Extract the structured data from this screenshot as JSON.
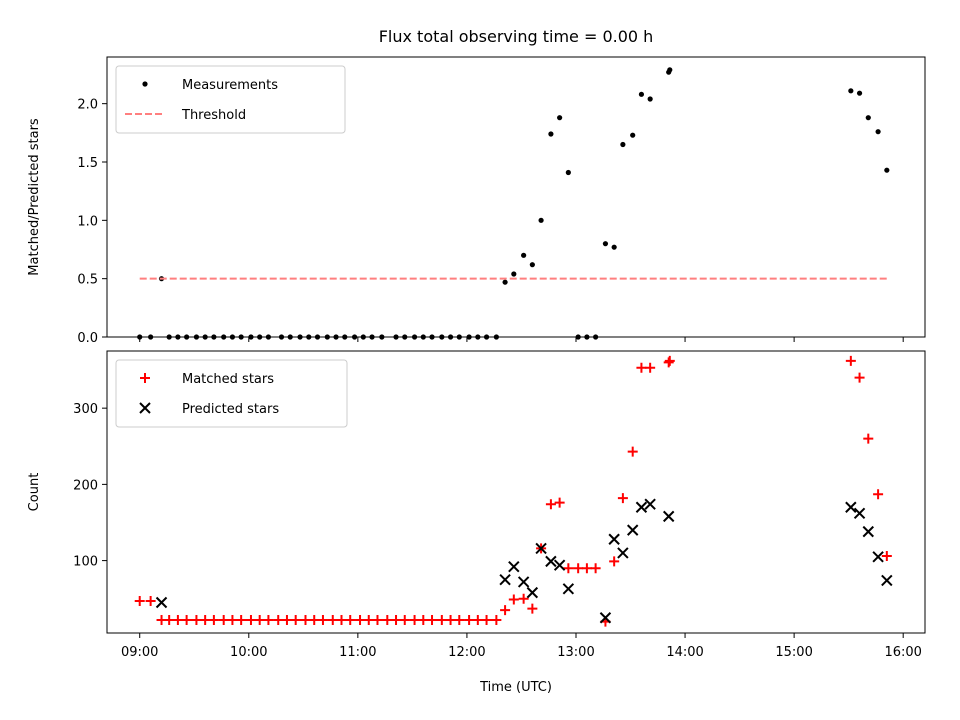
{
  "title": "Flux total observing time = 0.00 h",
  "xlabel": "Time (UTC)",
  "x_tick_labels": [
    "09:00",
    "10:00",
    "11:00",
    "12:00",
    "13:00",
    "14:00",
    "15:00",
    "16:00"
  ],
  "chart_data": [
    {
      "type": "scatter",
      "title": "Flux total observing time = 0.00 h",
      "xlabel": "",
      "ylabel": "Matched/Predicted stars",
      "x_unit": "hours UTC",
      "xlim": [
        8.7,
        16.2
      ],
      "ylim": [
        0,
        2.4
      ],
      "y_ticks": [
        0.0,
        0.5,
        1.0,
        1.5,
        2.0
      ],
      "y_tick_labels": [
        "0.0",
        "0.5",
        "1.0",
        "1.5",
        "2.0"
      ],
      "grid": false,
      "legend_placement": "upper left",
      "series": [
        {
          "name": "Measurements",
          "marker": "dot",
          "color": "#000000",
          "points": [
            [
              9.0,
              0
            ],
            [
              9.1,
              0
            ],
            [
              9.2,
              0.5
            ],
            [
              9.27,
              0
            ],
            [
              9.35,
              0
            ],
            [
              9.43,
              0
            ],
            [
              9.52,
              0
            ],
            [
              9.6,
              0
            ],
            [
              9.68,
              0
            ],
            [
              9.77,
              0
            ],
            [
              9.85,
              0
            ],
            [
              9.93,
              0
            ],
            [
              10.02,
              0
            ],
            [
              10.1,
              0
            ],
            [
              10.18,
              0
            ],
            [
              10.3,
              0
            ],
            [
              10.38,
              0
            ],
            [
              10.47,
              0
            ],
            [
              10.55,
              0
            ],
            [
              10.63,
              0
            ],
            [
              10.72,
              0
            ],
            [
              10.8,
              0
            ],
            [
              10.88,
              0
            ],
            [
              10.97,
              0
            ],
            [
              11.05,
              0
            ],
            [
              11.13,
              0
            ],
            [
              11.22,
              0
            ],
            [
              11.35,
              0
            ],
            [
              11.43,
              0
            ],
            [
              11.52,
              0
            ],
            [
              11.6,
              0
            ],
            [
              11.68,
              0
            ],
            [
              11.77,
              0
            ],
            [
              11.85,
              0
            ],
            [
              11.93,
              0
            ],
            [
              12.02,
              0
            ],
            [
              12.1,
              0
            ],
            [
              12.18,
              0
            ],
            [
              12.27,
              0
            ],
            [
              12.35,
              0.47
            ],
            [
              12.43,
              0.54
            ],
            [
              12.52,
              0.7
            ],
            [
              12.6,
              0.62
            ],
            [
              12.68,
              1.0
            ],
            [
              12.77,
              1.74
            ],
            [
              12.85,
              1.88
            ],
            [
              12.93,
              1.41
            ],
            [
              13.02,
              0
            ],
            [
              13.1,
              0
            ],
            [
              13.18,
              0
            ],
            [
              13.27,
              0.8
            ],
            [
              13.35,
              0.77
            ],
            [
              13.43,
              1.65
            ],
            [
              13.52,
              1.73
            ],
            [
              13.6,
              2.08
            ],
            [
              13.68,
              2.04
            ],
            [
              13.85,
              2.27
            ],
            [
              13.86,
              2.29
            ],
            [
              15.52,
              2.11
            ],
            [
              15.6,
              2.09
            ],
            [
              15.68,
              1.88
            ],
            [
              15.77,
              1.76
            ],
            [
              15.85,
              1.43
            ]
          ]
        },
        {
          "name": "Threshold",
          "marker": "dashed-line",
          "color": "#ff7f7f",
          "points": [
            [
              9.0,
              0.5
            ],
            [
              15.85,
              0.5
            ]
          ]
        }
      ]
    },
    {
      "type": "scatter",
      "xlabel": "Time (UTC)",
      "ylabel": "Count",
      "x_unit": "hours UTC",
      "xlim": [
        8.7,
        16.2
      ],
      "ylim": [
        5,
        375
      ],
      "y_ticks": [
        100,
        200,
        300
      ],
      "y_tick_labels": [
        "100",
        "200",
        "300"
      ],
      "x_ticks": [
        9,
        10,
        11,
        12,
        13,
        14,
        15,
        16
      ],
      "grid": false,
      "legend_placement": "upper left",
      "series": [
        {
          "name": "Matched stars",
          "marker": "plus",
          "color": "#ff0000",
          "points": [
            [
              9.0,
              47
            ],
            [
              9.1,
              47
            ],
            [
              9.2,
              22
            ],
            [
              9.27,
              22
            ],
            [
              9.35,
              22
            ],
            [
              9.43,
              22
            ],
            [
              9.52,
              22
            ],
            [
              9.6,
              22
            ],
            [
              9.68,
              22
            ],
            [
              9.77,
              22
            ],
            [
              9.85,
              22
            ],
            [
              9.93,
              22
            ],
            [
              10.02,
              22
            ],
            [
              10.1,
              22
            ],
            [
              10.18,
              22
            ],
            [
              10.27,
              22
            ],
            [
              10.35,
              22
            ],
            [
              10.43,
              22
            ],
            [
              10.52,
              22
            ],
            [
              10.6,
              22
            ],
            [
              10.68,
              22
            ],
            [
              10.77,
              22
            ],
            [
              10.85,
              22
            ],
            [
              10.93,
              22
            ],
            [
              11.02,
              22
            ],
            [
              11.1,
              22
            ],
            [
              11.18,
              22
            ],
            [
              11.27,
              22
            ],
            [
              11.35,
              22
            ],
            [
              11.43,
              22
            ],
            [
              11.52,
              22
            ],
            [
              11.6,
              22
            ],
            [
              11.68,
              22
            ],
            [
              11.77,
              22
            ],
            [
              11.85,
              22
            ],
            [
              11.93,
              22
            ],
            [
              12.02,
              22
            ],
            [
              12.1,
              22
            ],
            [
              12.18,
              22
            ],
            [
              12.27,
              22
            ],
            [
              12.35,
              35
            ],
            [
              12.43,
              49
            ],
            [
              12.52,
              50
            ],
            [
              12.6,
              37
            ],
            [
              12.68,
              116
            ],
            [
              12.77,
              174
            ],
            [
              12.85,
              176
            ],
            [
              12.93,
              90
            ],
            [
              13.02,
              90
            ],
            [
              13.1,
              90
            ],
            [
              13.18,
              90
            ],
            [
              13.27,
              20
            ],
            [
              13.35,
              99
            ],
            [
              13.43,
              182
            ],
            [
              13.52,
              243
            ],
            [
              13.6,
              353
            ],
            [
              13.68,
              353
            ],
            [
              13.85,
              360
            ],
            [
              13.86,
              362
            ],
            [
              15.52,
              362
            ],
            [
              15.6,
              340
            ],
            [
              15.68,
              260
            ],
            [
              15.77,
              187
            ],
            [
              15.85,
              106
            ]
          ]
        },
        {
          "name": "Predicted stars",
          "marker": "x",
          "color": "#000000",
          "points": [
            [
              9.2,
              45
            ],
            [
              12.35,
              75
            ],
            [
              12.43,
              92
            ],
            [
              12.52,
              72
            ],
            [
              12.6,
              58
            ],
            [
              12.68,
              116
            ],
            [
              12.77,
              99
            ],
            [
              12.85,
              94
            ],
            [
              12.93,
              63
            ],
            [
              13.27,
              25
            ],
            [
              13.35,
              128
            ],
            [
              13.43,
              110
            ],
            [
              13.52,
              140
            ],
            [
              13.6,
              170
            ],
            [
              13.68,
              174
            ],
            [
              13.85,
              158
            ],
            [
              15.52,
              170
            ],
            [
              15.6,
              162
            ],
            [
              15.68,
              138
            ],
            [
              15.77,
              105
            ],
            [
              15.85,
              74
            ]
          ]
        }
      ]
    }
  ]
}
